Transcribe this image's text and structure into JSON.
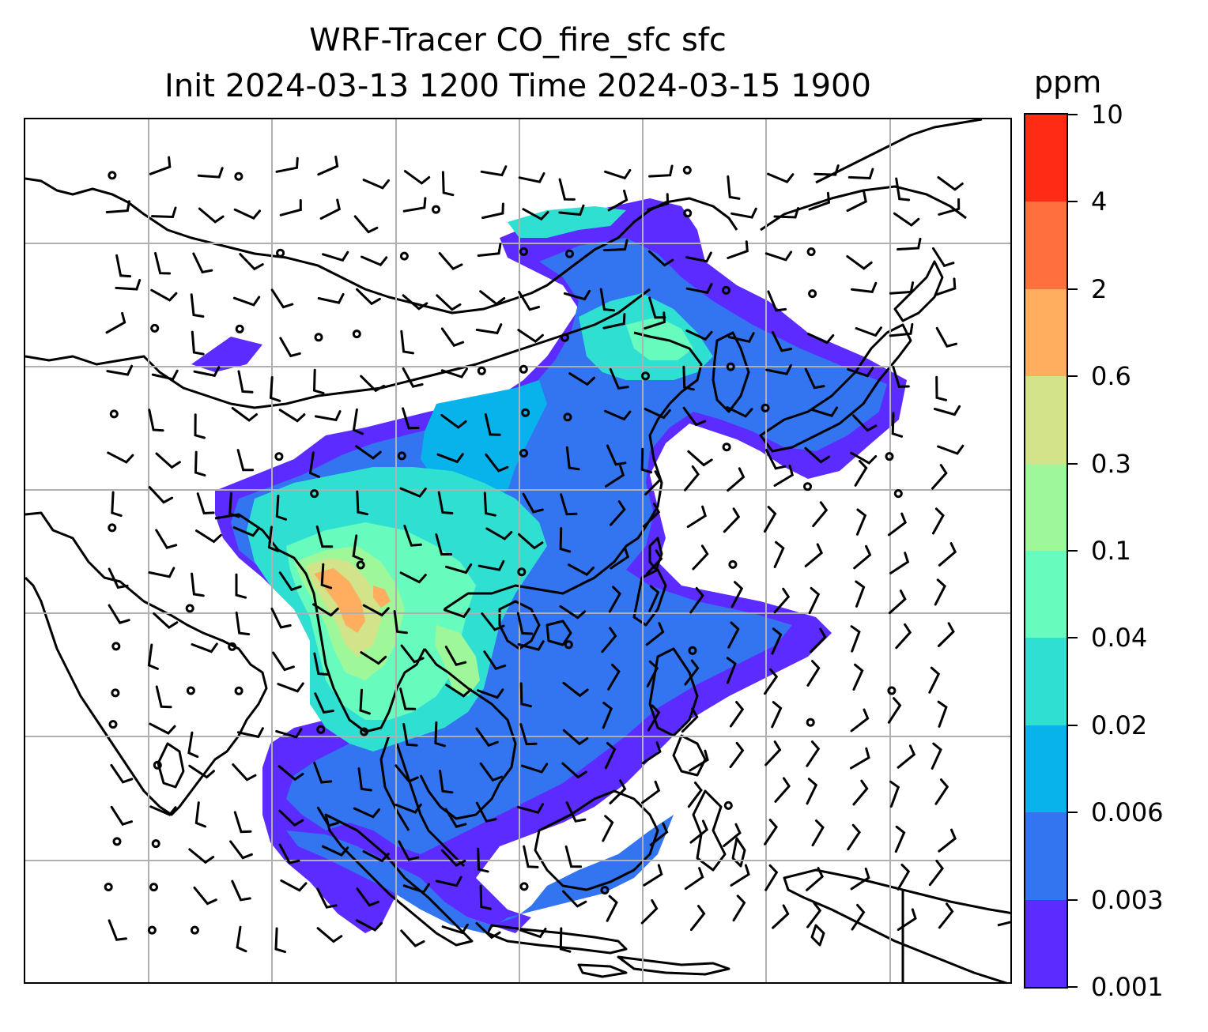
{
  "title": {
    "line1": "WRF-Tracer CO_fire_sfc sfc",
    "line2": "Init 2024-03-13 1200 Time 2024-03-15 1900"
  },
  "colorbar": {
    "unit": "ppm",
    "levels": [
      "0.001",
      "0.003",
      "0.006",
      "0.02",
      "0.04",
      "0.1",
      "0.3",
      "0.6",
      "2",
      "4",
      "10"
    ],
    "colors": [
      "#5b2bff",
      "#3374f0",
      "#07b3ea",
      "#2fe0d2",
      "#68fbbe",
      "#9ef89a",
      "#d2e38a",
      "#ffae5f",
      "#ff703d",
      "#ff2b15"
    ]
  },
  "map": {
    "gridline_color": "#b0b0b0",
    "coastline_color": "#000000",
    "wind_barbs": true,
    "fill_colors_used": [
      "#5b2bff",
      "#3374f0",
      "#07b3ea",
      "#2fe0d2",
      "#68fbbe",
      "#9ef89a",
      "#d2e38a",
      "#ffae5f"
    ]
  }
}
